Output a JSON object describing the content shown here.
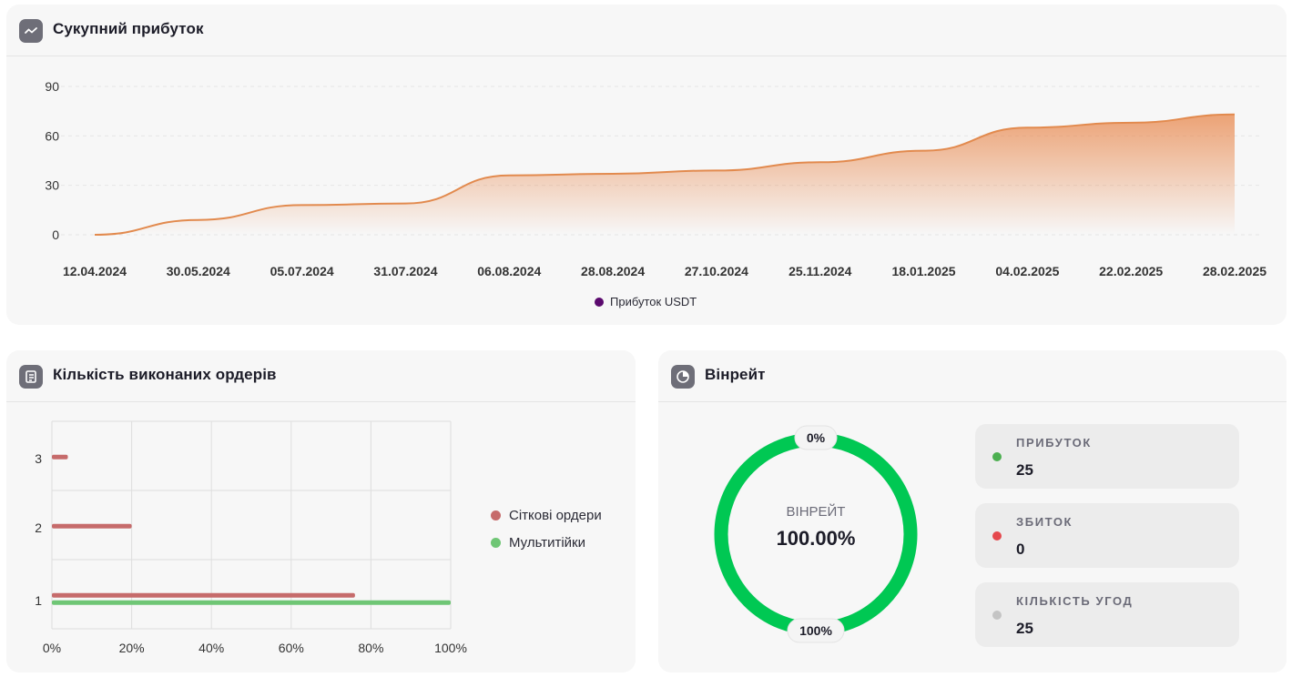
{
  "profit_card": {
    "title": "Сукупний прибуток",
    "icon": "trend-line-icon",
    "legend_label": "Прибуток USDT",
    "legend_color": "#5b0a6e"
  },
  "orders_card": {
    "title": "Кількість виконаних ордерів",
    "icon": "list-doc-icon",
    "legend": [
      {
        "label": "Сіткові ордери",
        "color": "#c66b6b"
      },
      {
        "label": "Мультитійки",
        "color": "#6fc675"
      }
    ]
  },
  "winrate_card": {
    "title": "Вінрейт",
    "icon": "pie-chart-icon",
    "donut": {
      "center_label": "ВІНРЕЙТ",
      "center_value": "100.00%",
      "top_tag": "0%",
      "bottom_tag": "100%",
      "color": "#00c853",
      "fraction": 1.0
    },
    "stats": [
      {
        "label": "ПРИБУТОК",
        "value": "25",
        "color": "#4caf50"
      },
      {
        "label": "ЗБИТОК",
        "value": "0",
        "color": "#e5484d"
      },
      {
        "label": "КІЛЬКІСТЬ УГОД",
        "value": "25",
        "color": "#c4c4c4"
      }
    ]
  },
  "chart_data": [
    {
      "type": "area",
      "x": [
        "12.04.2024",
        "30.05.2024",
        "05.07.2024",
        "31.07.2024",
        "06.08.2024",
        "28.08.2024",
        "27.10.2024",
        "25.11.2024",
        "18.01.2025",
        "04.02.2025",
        "22.02.2025",
        "28.02.2025"
      ],
      "series": [
        {
          "name": "Прибуток USDT",
          "values": [
            0,
            9,
            18,
            19,
            36,
            37,
            39,
            44,
            51,
            65,
            68,
            73
          ]
        }
      ],
      "ylim": [
        0,
        90
      ],
      "yticks": [
        0,
        30,
        60,
        90
      ],
      "color": "#e8864a",
      "grid": true,
      "legend": "bottom-center"
    },
    {
      "type": "bar",
      "orientation": "horizontal",
      "categories": [
        "1",
        "2",
        "3"
      ],
      "series": [
        {
          "name": "Сіткові ордери",
          "values": [
            76,
            20,
            4
          ]
        },
        {
          "name": "Мультитійки",
          "values": [
            100,
            0,
            0
          ]
        }
      ],
      "xticks": [
        "0%",
        "20%",
        "40%",
        "60%",
        "80%",
        "100%"
      ],
      "xlim": [
        0,
        100
      ],
      "grid": true,
      "legend": "right"
    }
  ]
}
